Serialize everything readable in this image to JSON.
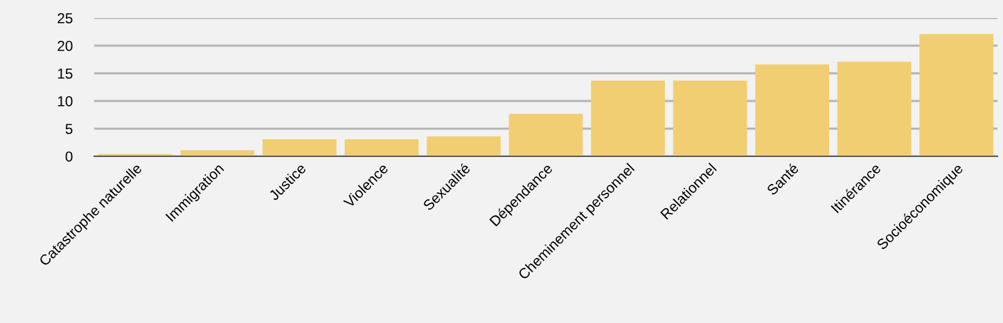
{
  "chart_data": {
    "type": "bar",
    "categories": [
      "Catastrophe naturelle",
      "Immigration",
      "Justice",
      "Violence",
      "Sexualité",
      "Dépendance",
      "Cheminement personnel",
      "Relationnel",
      "Santé",
      "Itinérance",
      "Socioéconomique"
    ],
    "values": [
      0.4,
      1.1,
      3.1,
      3.1,
      3.6,
      7.7,
      13.7,
      13.7,
      16.6,
      17.1,
      22.1
    ],
    "color": "#f2ce72",
    "ylim": [
      0,
      25
    ],
    "yticks": [
      0,
      5,
      10,
      15,
      20,
      25
    ],
    "grid": "y"
  }
}
